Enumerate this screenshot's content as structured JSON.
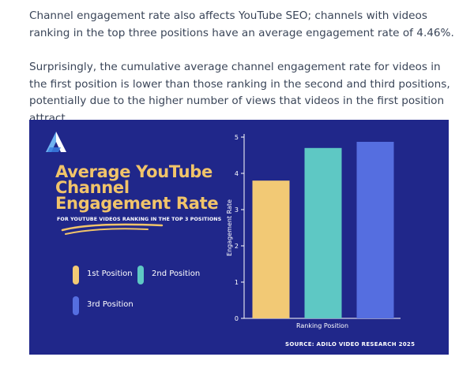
{
  "article": {
    "para1": "Channel engagement rate also affects YouTube SEO; channels with videos ranking in the top three positions have an average engagement rate of 4.46%.",
    "para2": "Surprisingly, the cumulative average channel engagement rate for videos in the first position is lower than those ranking in the second and third positions, potentially due to the higher number of views that videos in the first position attract."
  },
  "infographic": {
    "title": "Average YouTube Channel Engagement Rate",
    "subtitle": "FOR YOUTUBE VIDEOS RANKING IN THE TOP 3 POSITIONS",
    "source": "SOURCE: ADILO VIDEO RESEARCH 2025",
    "logo_icon": "adilo-logo-icon",
    "colors": {
      "background": "#20278a",
      "title": "#f1c46a",
      "pos1": "#f2c975",
      "pos2": "#5ec8c4",
      "pos3": "#556ee0"
    },
    "legend": [
      {
        "label": "1st Position",
        "color": "#f2c975"
      },
      {
        "label": "2nd Position",
        "color": "#5ec8c4"
      },
      {
        "label": "3rd Position",
        "color": "#556ee0"
      }
    ]
  },
  "chart_data": {
    "type": "bar",
    "categories": [
      "1st Position",
      "2nd Position",
      "3rd Position"
    ],
    "values": [
      3.8,
      4.7,
      4.87
    ],
    "xlabel": "Ranking Position",
    "ylabel": "Engagement Rate",
    "ylim": [
      0,
      5
    ],
    "yticks": [
      0,
      1,
      2,
      3,
      4,
      5
    ],
    "colors": [
      "#f2c975",
      "#5ec8c4",
      "#556ee0"
    ],
    "grid": false
  }
}
